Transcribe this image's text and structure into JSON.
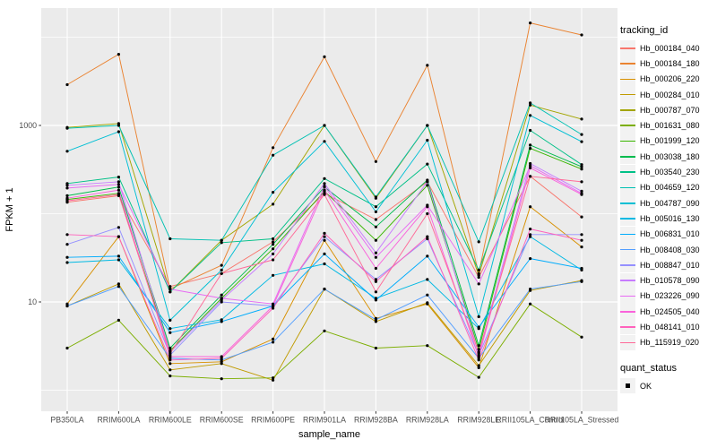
{
  "figure": {
    "background": "#FFFFFF",
    "panel_background": "#EBEBEB",
    "grid_color": "#FFFFFF",
    "axis_text_color": "#4D4D4D",
    "tick_color": "#333333",
    "point_color": "#000000"
  },
  "chart_data": {
    "type": "line",
    "title": "",
    "xlabel": "sample_name",
    "ylabel": "FPKM + 1",
    "y_scale": "log10",
    "ylim": [
      0.55,
      20000
    ],
    "y_tick_values": [
      10,
      1000
    ],
    "y_tick_labels": [
      "10",
      "1000"
    ],
    "y_gridlines_major": [
      10,
      1000
    ],
    "y_gridlines_minor": [
      1,
      100,
      10000
    ],
    "grid": true,
    "legend_position": "right",
    "categories": [
      "PB350LA",
      "RRIM600LA",
      "RRIM600LE",
      "RRIM600SE",
      "RRIM600PE",
      "RRIM901LA",
      "RRIM928BA",
      "RRIM928LA",
      "RRIM928LE",
      "RRII105LA_Control",
      "RRII105LA_Stressed"
    ],
    "series": [
      {
        "name": "Hb_000184_040",
        "color": "#F8766D",
        "values": [
          135,
          160,
          15,
          21,
          48,
          170,
          86,
          230,
          19,
          265,
          92
        ]
      },
      {
        "name": "Hb_000184_180",
        "color": "#EA8331",
        "values": [
          2900,
          6400,
          14,
          26,
          560,
          6000,
          390,
          4800,
          21,
          14500,
          10600
        ]
      },
      {
        "name": "Hb_000206_220",
        "color": "#D89000",
        "values": [
          9.5,
          55,
          2.0,
          2.1,
          3.8,
          50,
          6.5,
          9.5,
          1.8,
          120,
          42
        ]
      },
      {
        "name": "Hb_000284_010",
        "color": "#C09B00",
        "values": [
          9,
          16,
          1.7,
          2.0,
          1.3,
          14,
          6,
          9.8,
          1.9,
          13.5,
          17.5
        ]
      },
      {
        "name": "Hb_000787_070",
        "color": "#A3A500",
        "values": [
          950,
          1050,
          13,
          50,
          128,
          1000,
          150,
          1000,
          20,
          1700,
          1180
        ]
      },
      {
        "name": "Hb_001631_080",
        "color": "#7CAE00",
        "values": [
          3.0,
          6.2,
          1.45,
          1.35,
          1.38,
          4.7,
          3.0,
          3.2,
          1.4,
          9.5,
          4.0
        ]
      },
      {
        "name": "Hb_001999_120",
        "color": "#39B600",
        "values": [
          145,
          170,
          2.8,
          11,
          40,
          180,
          50,
          210,
          2.9,
          550,
          320
        ]
      },
      {
        "name": "Hb_003038_180",
        "color": "#00BB4E",
        "values": [
          160,
          200,
          3.0,
          12,
          45,
          200,
          71,
          240,
          3.2,
          600,
          340
        ]
      },
      {
        "name": "Hb_003540_230",
        "color": "#00C087",
        "values": [
          220,
          260,
          13,
          47,
          52,
          250,
          120,
          365,
          23,
          880,
          360
        ]
      },
      {
        "name": "Hb_004659_120",
        "color": "#00C0B2",
        "values": [
          930,
          1000,
          52,
          50,
          460,
          1000,
          155,
          1000,
          48,
          1800,
          790
        ]
      },
      {
        "name": "Hb_004787_090",
        "color": "#00BFD4",
        "values": [
          510,
          850,
          6.2,
          23,
          175,
          660,
          105,
          680,
          6.8,
          1300,
          655
        ]
      },
      {
        "name": "Hb_005016_130",
        "color": "#00B9E3",
        "values": [
          28,
          30,
          5.0,
          6.3,
          20,
          27,
          11,
          18,
          5.0,
          55,
          23
        ]
      },
      {
        "name": "Hb_006831_010",
        "color": "#00ACFC",
        "values": [
          32,
          33,
          4.5,
          6.0,
          9,
          35,
          10.5,
          33,
          5.2,
          31,
          24
        ]
      },
      {
        "name": "Hb_008408_030",
        "color": "#529EFF",
        "values": [
          9,
          15,
          2.3,
          2.2,
          3.5,
          14,
          6.3,
          12,
          2.3,
          14,
          17
        ]
      },
      {
        "name": "Hb_008847_010",
        "color": "#9590FF",
        "values": [
          45,
          70,
          2.5,
          10,
          9,
          55,
          18,
          52,
          2.5,
          58,
          58
        ]
      },
      {
        "name": "Hb_010578_090",
        "color": "#C77CFF",
        "values": [
          210,
          230,
          2.7,
          10.5,
          35,
          220,
          36,
          230,
          2.6,
          370,
          180
        ]
      },
      {
        "name": "Hb_023226_090",
        "color": "#E76BF3",
        "values": [
          195,
          215,
          14,
          11,
          9.5,
          205,
          32,
          125,
          16,
          350,
          170
        ]
      },
      {
        "name": "Hb_024505_040",
        "color": "#FA62DB",
        "values": [
          150,
          185,
          2.4,
          2.4,
          9,
          185,
          24,
          120,
          2.4,
          330,
          165
        ]
      },
      {
        "name": "Hb_048141_010",
        "color": "#FF62BC",
        "values": [
          58,
          55,
          2.2,
          2.3,
          8.5,
          60,
          17,
          55,
          2.2,
          67,
          50
        ]
      },
      {
        "name": "Hb_115919_020",
        "color": "#FF6A98",
        "values": [
          140,
          165,
          2.6,
          21,
          30,
          165,
          13,
          100,
          2.7,
          265,
          230
        ]
      }
    ],
    "legend": {
      "color_title": "tracking_id",
      "shape_title": "quant_status",
      "shape_entries": [
        {
          "label": "OK",
          "marker": "black-point"
        }
      ]
    }
  }
}
